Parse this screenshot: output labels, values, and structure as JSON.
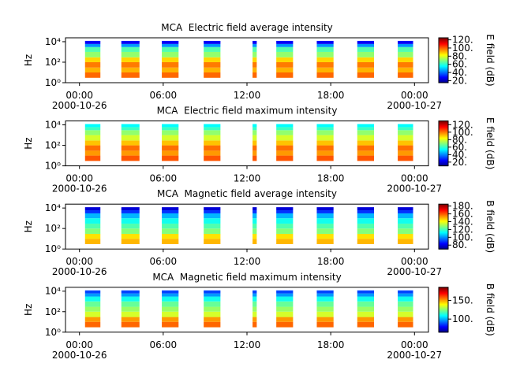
{
  "chart_data": [
    {
      "type": "spectrogram",
      "title": "MCA  Electric field average intensity",
      "ylabel": "Hz",
      "colorbar_label": "E field (dB)",
      "colormap": "jet",
      "log_y": true,
      "xlim": [
        -1,
        25
      ],
      "xticks": [
        {
          "value": 0,
          "label": "00:00"
        },
        {
          "value": 6,
          "label": "06:00"
        },
        {
          "value": 12,
          "label": "12:00"
        },
        {
          "value": 18,
          "label": "18:00"
        },
        {
          "value": 24,
          "label": "00:00"
        }
      ],
      "xtick_dates": [
        {
          "value": 0,
          "label": "2000-10-26"
        },
        {
          "value": 24,
          "label": "2000-10-27"
        }
      ],
      "ylim": [
        1,
        24000
      ],
      "yticks": [
        {
          "value": 1,
          "label": "10⁰"
        },
        {
          "value": 100,
          "label": "10²"
        },
        {
          "value": 10000,
          "label": "10⁴"
        }
      ],
      "clim": [
        15,
        125
      ],
      "cticks": [
        {
          "value": 20,
          "label": "20."
        },
        {
          "value": 40,
          "label": "40."
        },
        {
          "value": 60,
          "label": "60."
        },
        {
          "value": 80,
          "label": "80."
        },
        {
          "value": 100,
          "label": "100."
        },
        {
          "value": 120,
          "label": "120."
        }
      ],
      "intervals": [
        [
          0.4,
          1.5
        ],
        [
          3.0,
          4.3
        ],
        [
          5.9,
          7.1
        ],
        [
          8.9,
          10.1
        ],
        [
          12.4,
          12.7
        ],
        [
          14.1,
          15.3
        ],
        [
          17.0,
          18.2
        ],
        [
          19.9,
          21.1
        ],
        [
          22.8,
          23.9
        ]
      ],
      "freq_bins": [
        3,
        10,
        30,
        100,
        300,
        1000,
        3000,
        6000,
        12000
      ],
      "values": [
        100,
        92,
        98,
        88,
        72,
        65,
        45,
        28
      ]
    },
    {
      "type": "spectrogram",
      "title": "MCA  Electric field maximum intensity",
      "ylabel": "Hz",
      "colorbar_label": "E field (dB)",
      "colormap": "jet",
      "log_y": true,
      "xlim": [
        -1,
        25
      ],
      "xticks": [
        {
          "value": 0,
          "label": "00:00"
        },
        {
          "value": 6,
          "label": "06:00"
        },
        {
          "value": 12,
          "label": "12:00"
        },
        {
          "value": 18,
          "label": "18:00"
        },
        {
          "value": 24,
          "label": "00:00"
        }
      ],
      "xtick_dates": [
        {
          "value": 0,
          "label": "2000-10-26"
        },
        {
          "value": 24,
          "label": "2000-10-27"
        }
      ],
      "ylim": [
        1,
        24000
      ],
      "yticks": [
        {
          "value": 1,
          "label": "10⁰"
        },
        {
          "value": 100,
          "label": "10²"
        },
        {
          "value": 10000,
          "label": "10⁴"
        }
      ],
      "clim": [
        10,
        130
      ],
      "cticks": [
        {
          "value": 20,
          "label": "20."
        },
        {
          "value": 40,
          "label": "40."
        },
        {
          "value": 60,
          "label": "60."
        },
        {
          "value": 80,
          "label": "80."
        },
        {
          "value": 100,
          "label": "100."
        },
        {
          "value": 120,
          "label": "120."
        }
      ],
      "intervals": [
        [
          0.4,
          1.5
        ],
        [
          3.0,
          4.3
        ],
        [
          5.9,
          7.1
        ],
        [
          8.9,
          10.1
        ],
        [
          12.4,
          12.7
        ],
        [
          14.1,
          15.3
        ],
        [
          17.0,
          18.2
        ],
        [
          19.9,
          21.1
        ],
        [
          22.8,
          23.9
        ]
      ],
      "freq_bins": [
        3,
        10,
        30,
        100,
        300,
        1000,
        3000,
        6000,
        12000
      ],
      "values": [
        105,
        97,
        102,
        92,
        80,
        72,
        62,
        55
      ]
    },
    {
      "type": "spectrogram",
      "title": "MCA  Magnetic field average intensity",
      "ylabel": "Hz",
      "colorbar_label": "B field (dB)",
      "colormap": "jet",
      "log_y": true,
      "xlim": [
        -1,
        25
      ],
      "xticks": [
        {
          "value": 0,
          "label": "00:00"
        },
        {
          "value": 6,
          "label": "06:00"
        },
        {
          "value": 12,
          "label": "12:00"
        },
        {
          "value": 18,
          "label": "18:00"
        },
        {
          "value": 24,
          "label": "00:00"
        }
      ],
      "xtick_dates": [
        {
          "value": 0,
          "label": "2000-10-26"
        },
        {
          "value": 24,
          "label": "2000-10-27"
        }
      ],
      "ylim": [
        1,
        24000
      ],
      "yticks": [
        {
          "value": 1,
          "label": "10⁰"
        },
        {
          "value": 100,
          "label": "10²"
        },
        {
          "value": 10000,
          "label": "10⁴"
        }
      ],
      "clim": [
        70,
        185
      ],
      "cticks": [
        {
          "value": 80,
          "label": "80."
        },
        {
          "value": 100,
          "label": "100."
        },
        {
          "value": 120,
          "label": "120."
        },
        {
          "value": 140,
          "label": "140."
        },
        {
          "value": 160,
          "label": "160."
        },
        {
          "value": 180,
          "label": "180."
        }
      ],
      "intervals": [
        [
          0.4,
          1.5
        ],
        [
          3.0,
          4.3
        ],
        [
          5.9,
          7.1
        ],
        [
          8.9,
          10.1
        ],
        [
          12.4,
          12.7
        ],
        [
          14.1,
          15.3
        ],
        [
          17.0,
          18.2
        ],
        [
          19.9,
          21.1
        ],
        [
          22.8,
          23.9
        ]
      ],
      "freq_bins": [
        3,
        10,
        30,
        100,
        300,
        1000,
        3000,
        6000,
        12000
      ],
      "values": [
        150,
        145,
        128,
        122,
        115,
        105,
        90,
        80
      ]
    },
    {
      "type": "spectrogram",
      "title": "MCA  Magnetic field maximum intensity",
      "ylabel": "Hz",
      "colorbar_label": "B field (dB)",
      "colormap": "jet",
      "log_y": true,
      "xlim": [
        -1,
        25
      ],
      "xticks": [
        {
          "value": 0,
          "label": "00:00"
        },
        {
          "value": 6,
          "label": "06:00"
        },
        {
          "value": 12,
          "label": "12:00"
        },
        {
          "value": 18,
          "label": "18:00"
        },
        {
          "value": 24,
          "label": "00:00"
        }
      ],
      "xtick_dates": [
        {
          "value": 0,
          "label": "2000-10-26"
        },
        {
          "value": 24,
          "label": "2000-10-27"
        }
      ],
      "ylim": [
        1,
        24000
      ],
      "yticks": [
        {
          "value": 1,
          "label": "10⁰"
        },
        {
          "value": 100,
          "label": "10²"
        },
        {
          "value": 10000,
          "label": "10⁴"
        }
      ],
      "clim": [
        65,
        185
      ],
      "cticks": [
        {
          "value": 100,
          "label": "100."
        },
        {
          "value": 150,
          "label": "150."
        }
      ],
      "intervals": [
        [
          0.4,
          1.5
        ],
        [
          3.0,
          4.3
        ],
        [
          5.9,
          7.1
        ],
        [
          8.9,
          10.1
        ],
        [
          12.4,
          12.7
        ],
        [
          14.1,
          15.3
        ],
        [
          17.0,
          18.2
        ],
        [
          19.9,
          21.1
        ],
        [
          22.8,
          23.9
        ]
      ],
      "freq_bins": [
        3,
        10,
        30,
        100,
        300,
        1000,
        3000,
        6000,
        12000
      ],
      "values": [
        158,
        152,
        135,
        128,
        122,
        112,
        98,
        88
      ]
    }
  ]
}
